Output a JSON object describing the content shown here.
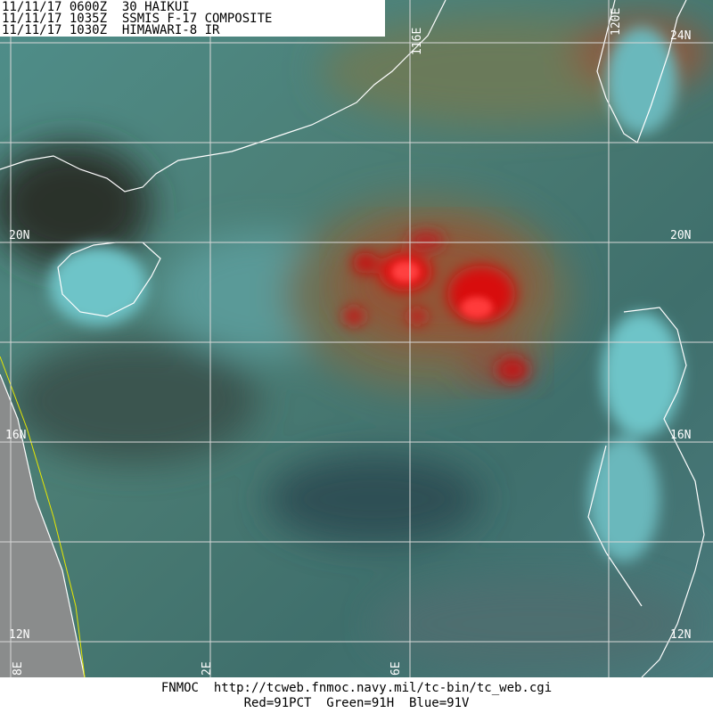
{
  "header": {
    "lines": [
      "11/11/17 0600Z  30 HAIKUI",
      "11/11/17 1035Z  SSMIS F-17 COMPOSITE",
      "11/11/17 1030Z  HIMAWARI-8 IR"
    ]
  },
  "grid_labels": {
    "lat_left": [
      "20N",
      "16N",
      "12N"
    ],
    "lat_right": [
      "24N",
      "20N",
      "16N",
      "12N"
    ],
    "lon_top": [
      "116E",
      "120E"
    ],
    "lon_bottom": [
      "8E",
      "2E",
      "6E"
    ]
  },
  "footer": {
    "lines": [
      "FNMOC  http://tcweb.fnmoc.navy.mil/tc-bin/tc_web.cgi",
      "Red=91PCT  Green=91H  Blue=91V"
    ]
  }
}
